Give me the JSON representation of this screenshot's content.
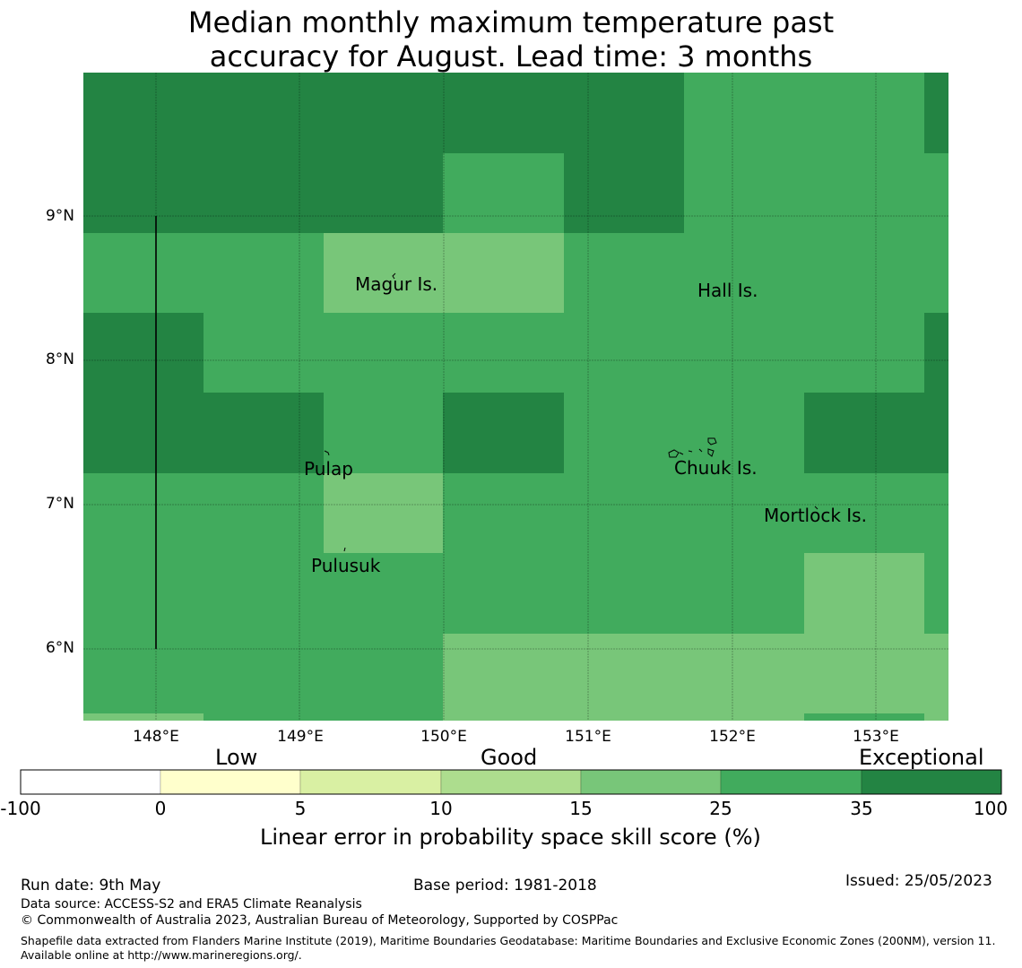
{
  "title": {
    "line1": "Median monthly maximum temperature past",
    "line2": "accuracy for August. Lead time: 3 months"
  },
  "map": {
    "lon_range": [
      147.5,
      153.5
    ],
    "lat_range": [
      5.5,
      10.0
    ],
    "lat_ticks": [
      {
        "value": 9,
        "label": "9°N"
      },
      {
        "value": 8,
        "label": "8°N"
      },
      {
        "value": 7,
        "label": "7°N"
      },
      {
        "value": 6,
        "label": "6°N"
      }
    ],
    "lon_ticks": [
      {
        "value": 148,
        "label": "148°E"
      },
      {
        "value": 149,
        "label": "149°E"
      },
      {
        "value": 150,
        "label": "150°E"
      },
      {
        "value": 151,
        "label": "151°E"
      },
      {
        "value": 152,
        "label": "152°E"
      },
      {
        "value": 153,
        "label": "153°E"
      }
    ],
    "places": [
      {
        "name": "Magur Is.",
        "lon": 149.7,
        "lat": 8.55
      },
      {
        "name": "Hall Is.",
        "lon": 151.98,
        "lat": 8.5
      },
      {
        "name": "Pulap",
        "lon": 149.2,
        "lat": 7.27
      },
      {
        "name": "Chuuk Is.",
        "lon": 151.85,
        "lat": 7.27
      },
      {
        "name": "Mortlock Is.",
        "lon": 152.6,
        "lat": 6.95
      },
      {
        "name": "Pulusuk",
        "lon": 149.33,
        "lat": 6.6
      }
    ],
    "legend_categories": {
      "low": "Low",
      "good": "Good",
      "exceptional": "Exceptional"
    },
    "colors": {
      "below_0": "#ffffff",
      "0_5": "#ffffcc",
      "5_10": "#d9f0a3",
      "10_15": "#addd8e",
      "15_25": "#78c679",
      "25_35": "#41ab5d",
      "35_100": "#238443"
    },
    "colorbar": {
      "ticks": [
        "-100",
        "0",
        "5",
        "10",
        "15",
        "25",
        "35",
        "100"
      ],
      "label": "Linear error in probability space skill score (%)"
    }
  },
  "footer": {
    "run_date": "Run date: 9th May",
    "base_period": "Base period: 1981-2018",
    "issued": "Issued: 25/05/2023",
    "data_source": "Data source: ACCESS-S2 and ERA5 Climate Reanalysis",
    "copyright": "© Commonwealth of Australia 2023, Australian Bureau of Meteorology, Supported by COSPPac",
    "shapefile": "Shapefile data extracted from Flanders Marine Institute (2019), Maritime Boundaries Geodatabase: Maritime Boundaries and Exclusive Economic Zones (200NM), version 11. Available online at http://www.marineregions.org/."
  }
}
